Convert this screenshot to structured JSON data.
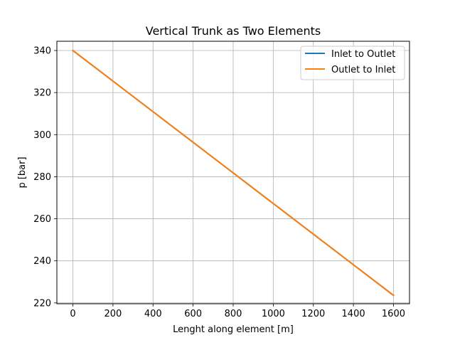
{
  "chart_data": {
    "type": "line",
    "title": "Vertical Trunk as Two Elements",
    "xlabel": "Lenght along element [m]",
    "ylabel": "p [bar]",
    "xlim": [
      -80,
      1680
    ],
    "ylim": [
      219.6,
      344.4
    ],
    "xticks": [
      0,
      200,
      400,
      600,
      800,
      1000,
      1200,
      1400,
      1600
    ],
    "yticks": [
      220,
      240,
      260,
      280,
      300,
      320,
      340
    ],
    "grid": true,
    "legend_position": "top-right",
    "series": [
      {
        "name": "Inlet to Outlet",
        "color": "#1f77b4",
        "x": [
          0,
          1600
        ],
        "y": [
          340,
          223.6
        ]
      },
      {
        "name": "Outlet to Inlet",
        "color": "#ff7f0e",
        "x": [
          0,
          1600
        ],
        "y": [
          340,
          223.6
        ]
      }
    ]
  }
}
